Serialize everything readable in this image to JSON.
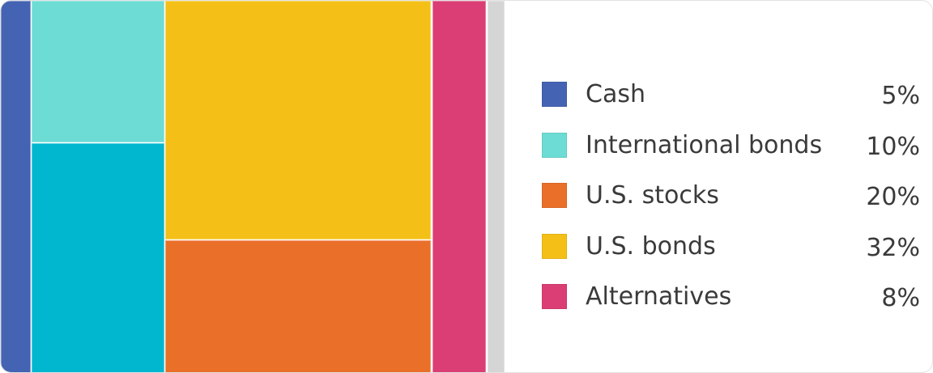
{
  "chart_data": {
    "type": "treemap",
    "legend_position": "right",
    "series": [
      {
        "name": "Cash",
        "value": 5,
        "label": "5%",
        "color": "#4563b3"
      },
      {
        "name": "International bonds",
        "value": 10,
        "label": "10%",
        "color": "#6ddcd5"
      },
      {
        "name": "U.S. stocks",
        "value": 20,
        "label": "20%",
        "color": "#ea6f29"
      },
      {
        "name": "U.S. bonds",
        "value": 32,
        "label": "32%",
        "color": "#f4c018"
      },
      {
        "name": "Alternatives",
        "value": 8,
        "label": "8%",
        "color": "#db3e74"
      }
    ],
    "unlabeled_tiles": [
      {
        "color": "#00b7cf"
      },
      {
        "color": "#d5d5d5"
      }
    ]
  }
}
